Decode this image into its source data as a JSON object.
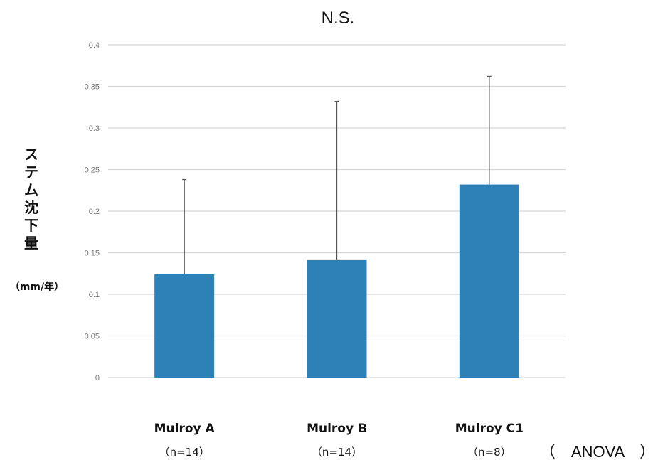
{
  "chart_data": {
    "type": "bar",
    "title": "N.S.",
    "ylabel": "ステム沈下量",
    "yunit": "（mm/年）",
    "categories": [
      "Mulroy A",
      "Mulroy B",
      "Mulroy C1"
    ],
    "sample_sizes": [
      "（n=14）",
      "（n=14）",
      "（n=8）"
    ],
    "values": [
      0.124,
      0.142,
      0.232
    ],
    "error_upper": [
      0.238,
      0.332,
      0.362
    ],
    "ylim": [
      0,
      0.4
    ],
    "yticks": [
      "0",
      "0.05",
      "0.1",
      "0.15",
      "0.2",
      "0.25",
      "0.3",
      "0.35",
      "0.4"
    ],
    "grid": true,
    "test_note": "（　ANOVA　）",
    "bar_color": "#2e81b7"
  }
}
